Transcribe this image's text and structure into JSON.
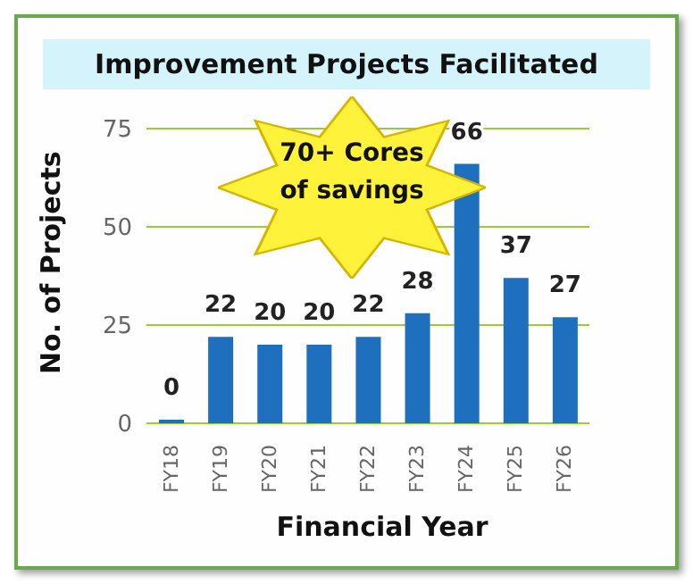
{
  "chart_data": {
    "type": "bar",
    "title": "Improvement Projects Facilitated",
    "xlabel": "Financial Year",
    "ylabel": "No. of Projects",
    "categories": [
      "FY18",
      "FY19",
      "FY20",
      "FY21",
      "FY22",
      "FY23",
      "FY24",
      "FY25",
      "FY26"
    ],
    "values": [
      0,
      22,
      20,
      20,
      22,
      28,
      66,
      37,
      27
    ],
    "color": "#1f6fbf",
    "ylim": [
      0,
      75
    ],
    "yticks": [
      0,
      25,
      50,
      75
    ],
    "grid": "y",
    "data_labels": true,
    "annotations": [
      "70+ Cores of savings"
    ]
  }
}
